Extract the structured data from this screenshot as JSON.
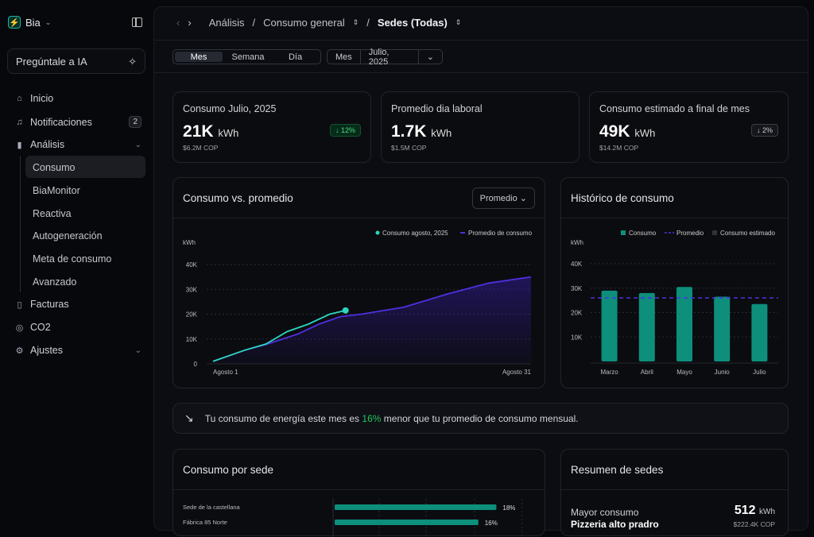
{
  "app": {
    "name": "Bia",
    "ai_label": "Pregúntale a IA"
  },
  "sidebar": {
    "items": [
      {
        "label": "Inicio",
        "icon": "home-icon"
      },
      {
        "label": "Notificaciones",
        "icon": "bell-icon",
        "badge": "2"
      },
      {
        "label": "Análisis",
        "icon": "chart-icon"
      },
      {
        "label": "Facturas",
        "icon": "invoice-icon"
      },
      {
        "label": "CO2",
        "icon": "globe-icon"
      },
      {
        "label": "Ajustes",
        "icon": "gear-icon"
      }
    ],
    "sub_items": [
      "Consumo",
      "BiaMonitor",
      "Reactiva",
      "Autogeneración",
      "Meta de consumo",
      "Avanzado"
    ]
  },
  "breadcrumb": {
    "items": [
      "Análisis",
      "Consumo general",
      "Sedes (Todas)"
    ]
  },
  "toolbar": {
    "periods": [
      "Mes",
      "Semana",
      "Día"
    ],
    "selected": "Mes",
    "range_type": "Mes",
    "range_value": "Julio, 2025"
  },
  "kpis": [
    {
      "title": "Consumo Julio, 2025",
      "value": "21K",
      "unit": "kWh",
      "sub": "$6.2M COP",
      "badge": "↓ 12%"
    },
    {
      "title": "Promedio dia laboral",
      "value": "1.7K",
      "unit": "kWh",
      "sub": "$1.5M COP"
    },
    {
      "title": "Consumo estimado a final de mes",
      "value": "49K",
      "unit": "kWh",
      "sub": "$14.2M COP",
      "badge": "↓ 2%"
    }
  ],
  "colors": {
    "teal": "#0d8f7c",
    "cyan": "#2dd4bf",
    "purple": "#4f2fe0",
    "green": "#22c55e"
  },
  "chart_data": [
    {
      "type": "line",
      "title": "Consumo vs. promedio",
      "dropdown": "Promedio",
      "ylabel": "kWh",
      "ylim": [
        0,
        40000
      ],
      "yticks": [
        "0",
        "10K",
        "20K",
        "30K",
        "40K"
      ],
      "xtick_labels": [
        "Agosto 1",
        "Agosto 31"
      ],
      "xlim": [
        1,
        31
      ],
      "series": [
        {
          "name": "Consumo agosto, 2025",
          "x": [
            1,
            4,
            6,
            8,
            10,
            12,
            13.5
          ],
          "values": [
            1000,
            5500,
            8000,
            13000,
            16000,
            20000,
            21500
          ]
        },
        {
          "name": "Promedio de consumo",
          "x": [
            1,
            4,
            6,
            9,
            11,
            13,
            15,
            19,
            23,
            27,
            31
          ],
          "values": [
            1000,
            5500,
            7800,
            12000,
            16000,
            19000,
            20000,
            22800,
            28000,
            32500,
            35000
          ]
        }
      ]
    },
    {
      "type": "bar",
      "title": "Histórico de consumo",
      "ylabel": "kWh",
      "ylim": [
        0,
        40000
      ],
      "yticks": [
        "10K",
        "20K",
        "30K",
        "40K"
      ],
      "legend": [
        "Consumo",
        "Promedio",
        "Consumo estimado"
      ],
      "categories": [
        "Marzo",
        "Abril",
        "Mayo",
        "Junio",
        "Julio"
      ],
      "values": [
        29000,
        28000,
        30500,
        26500,
        23500
      ],
      "average": 26000
    }
  ],
  "insight": {
    "pre": "Tu consumo de energía este mes es ",
    "highlight": "16%",
    "post": " menor que tu promedio de consumo mensual."
  },
  "sedes": {
    "title": "Consumo por sede",
    "rows": [
      {
        "name": "Sede de la castellana",
        "pct": 18,
        "label": "18%"
      },
      {
        "name": "Fábrica 85 Norte",
        "pct": 16,
        "label": "16%"
      }
    ]
  },
  "resumen": {
    "title": "Resumen de sedes",
    "label": "Mayor consumo",
    "name": "Pizzeria alto pradro",
    "value": "512",
    "unit": "kWh",
    "cost": "$222.4K COP"
  }
}
